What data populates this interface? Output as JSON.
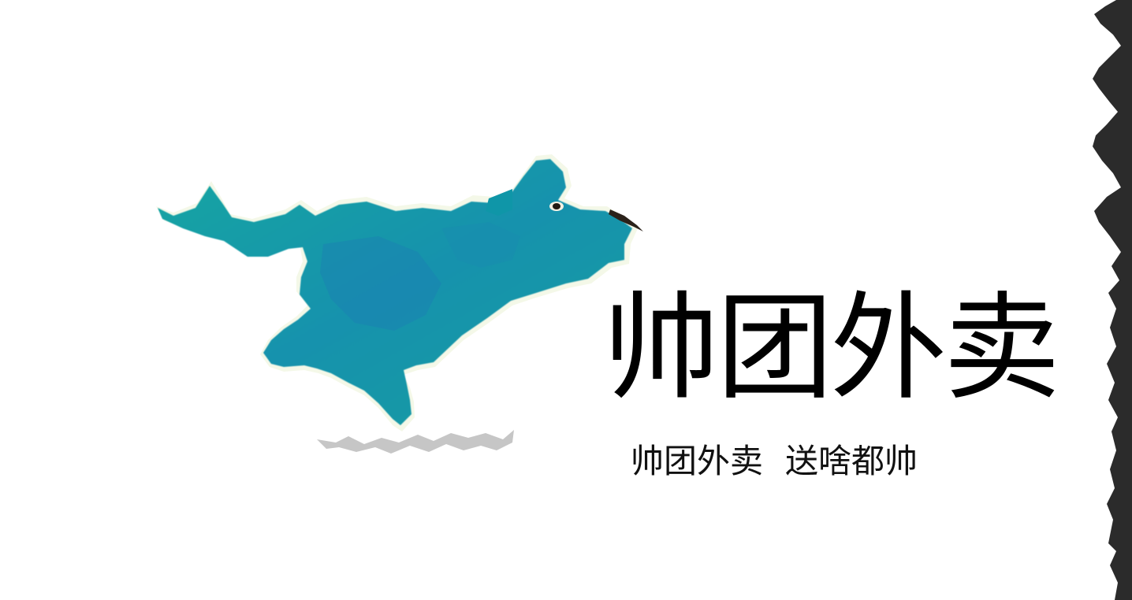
{
  "brand": {
    "title": "帅团外卖",
    "slogan_part1": "帅团外卖",
    "slogan_part2": "送啥都帅"
  },
  "colors": {
    "mascot_teal": "#12a3a8",
    "mascot_blue": "#1d86b0",
    "shadow_gray": "#c8c8c8",
    "edge_dark": "#2b2b2b",
    "text": "#000000"
  },
  "icons": {
    "mascot": "running-teal-dog-mascot",
    "edge": "torn-paper-edge"
  }
}
